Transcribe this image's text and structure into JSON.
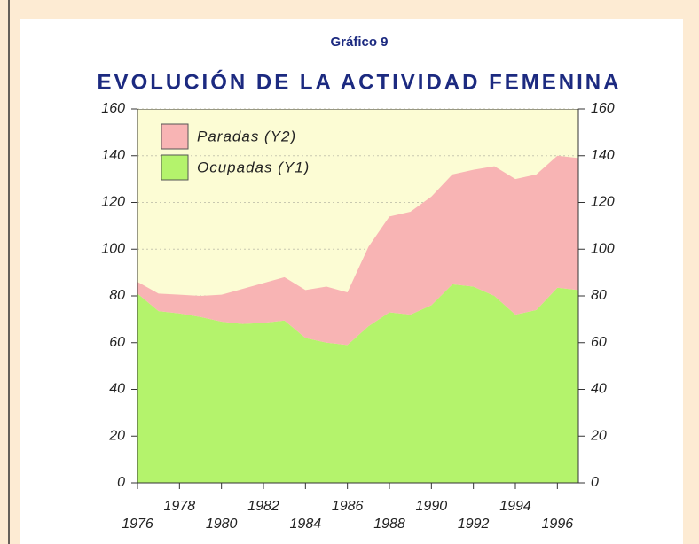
{
  "chart_data": {
    "type": "stacked_area",
    "subtitle": "Gráfico 9",
    "title": "EVOLUCIÓN DE LA ACTIVIDAD FEMENINA",
    "x": [
      1976,
      1977,
      1978,
      1979,
      1980,
      1981,
      1982,
      1983,
      1984,
      1985,
      1986,
      1987,
      1988,
      1989,
      1990,
      1991,
      1992,
      1993,
      1994,
      1995,
      1996,
      1997
    ],
    "series": [
      {
        "name": "Ocupadas (Y1)",
        "color": "#b4f36c",
        "values": [
          81,
          73.5,
          72.5,
          71,
          69,
          68,
          68.5,
          69.5,
          62,
          60,
          59,
          67,
          73,
          72,
          76,
          85,
          84,
          80,
          72,
          74,
          83.5,
          82.5
        ]
      },
      {
        "name": "Paradas (Y2)",
        "color": "#f8b4b4",
        "axis": "y2",
        "values": [
          5,
          7.5,
          8,
          9,
          11.5,
          15,
          17,
          18.5,
          20.5,
          24,
          22.5,
          34,
          41,
          44,
          46.5,
          47,
          50,
          55.5,
          58,
          58,
          56.5,
          56.5
        ]
      }
    ],
    "xlim": [
      1976,
      1997
    ],
    "xticks": [
      1976,
      1978,
      1980,
      1982,
      1984,
      1986,
      1988,
      1990,
      1992,
      1994,
      1996
    ],
    "ylim": [
      0,
      160
    ],
    "yticks": [
      0,
      20,
      40,
      60,
      80,
      100,
      120,
      140,
      160
    ],
    "y2lim": [
      0,
      160
    ],
    "y2ticks": [
      0,
      20,
      40,
      60,
      80,
      100,
      120,
      140,
      160
    ],
    "grid": true
  }
}
